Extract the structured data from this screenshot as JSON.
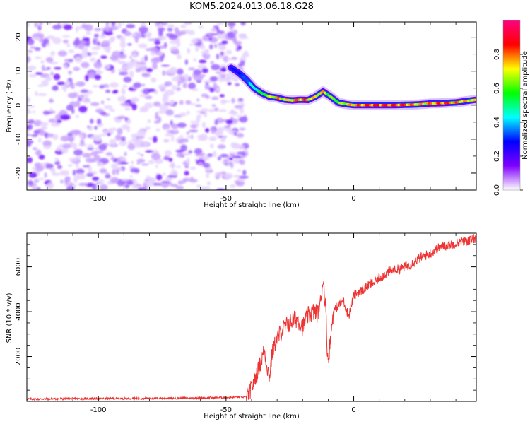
{
  "title": "KOM5.2024.013.06.18.G28",
  "chart_data": [
    {
      "type": "heatmap",
      "title": "KOM5.2024.013.06.18.G28",
      "xlabel": "Height of straight line (km)",
      "ylabel": "Frequency (Hz)",
      "xlim": [
        -128,
        48
      ],
      "ylim": [
        -25,
        24.5
      ],
      "xticks": [
        -100,
        -50,
        0
      ],
      "yticks": [
        -20,
        -10,
        0,
        10,
        20
      ],
      "colorbar": {
        "label": "Normalized spectral amplitude",
        "range": [
          0,
          1
        ],
        "ticks": [
          "0.0",
          "0.2",
          "0.4",
          "0.6",
          "0.8"
        ],
        "colors": [
          "#ffffff",
          "#8000ff",
          "#0000ff",
          "#00ffff",
          "#00ff00",
          "#ffff00",
          "#ff0000",
          "#ff0080"
        ]
      },
      "noise_region_x": [
        -128,
        -42
      ],
      "ridge": {
        "x": [
          -48,
          -45,
          -42,
          -39,
          -36,
          -33,
          -30,
          -27,
          -24,
          -21,
          -18,
          -15,
          -12,
          -9,
          -6,
          -3,
          0,
          5,
          10,
          15,
          20,
          25,
          30,
          35,
          40,
          44,
          48
        ],
        "y": [
          11,
          9.5,
          7.5,
          5,
          3.5,
          2.5,
          2.2,
          1.6,
          1.4,
          1.6,
          1.5,
          2.5,
          4,
          2.5,
          0.7,
          0.3,
          0,
          0,
          0,
          0,
          0.1,
          0.2,
          0.5,
          0.6,
          0.8,
          1.2,
          1.6
        ],
        "amplitude": [
          0.15,
          0.2,
          0.3,
          0.45,
          0.55,
          0.65,
          0.8,
          0.7,
          0.75,
          0.85,
          0.8,
          0.7,
          0.75,
          0.6,
          0.6,
          0.7,
          0.8,
          0.85,
          0.9,
          0.85,
          0.85,
          0.75,
          0.8,
          0.85,
          0.8,
          0.75,
          0.7
        ]
      }
    },
    {
      "type": "line",
      "xlabel": "Height of straight line (km)",
      "ylabel": "SNR (10 * v/v)",
      "xlim": [
        -128,
        48
      ],
      "ylim": [
        0,
        7500
      ],
      "xticks": [
        -100,
        -50,
        0
      ],
      "yticks": [
        2000,
        4000,
        6000
      ],
      "color": "#ee3333",
      "x": [
        -128,
        -110,
        -90,
        -70,
        -50,
        -42,
        -40,
        -38,
        -36,
        -35,
        -34,
        -33,
        -32,
        -31,
        -30,
        -28,
        -26,
        -24,
        -22,
        -20,
        -18,
        -16,
        -14,
        -13,
        -12,
        -11,
        -10.5,
        -10,
        -8,
        -6,
        -4,
        -2,
        0,
        2,
        4,
        6,
        8,
        10,
        14,
        18,
        22,
        26,
        30,
        34,
        38,
        42,
        46,
        48
      ],
      "y": [
        100,
        120,
        130,
        140,
        170,
        200,
        600,
        1200,
        1900,
        2300,
        1600,
        1100,
        2100,
        2500,
        2800,
        3200,
        3400,
        3600,
        3700,
        3300,
        3800,
        4000,
        3900,
        4400,
        5500,
        4300,
        2600,
        1800,
        4000,
        4300,
        4500,
        3800,
        4700,
        4900,
        5000,
        5200,
        5300,
        5500,
        5800,
        5900,
        6100,
        6400,
        6600,
        6900,
        7000,
        7100,
        7200,
        7300
      ]
    }
  ]
}
